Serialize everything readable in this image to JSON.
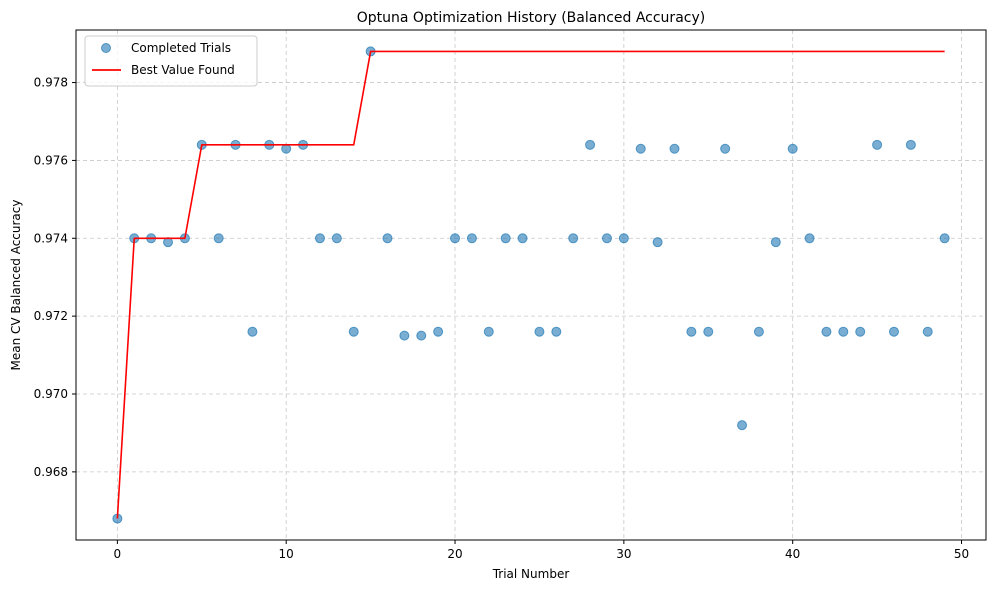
{
  "chart_data": {
    "type": "scatter",
    "title": "Optuna Optimization History (Balanced Accuracy)",
    "xlabel": "Trial Number",
    "ylabel": "Mean CV Balanced Accuracy",
    "xlim": [
      -2.45,
      51.45
    ],
    "ylim": [
      0.96625,
      0.97935
    ],
    "xticks": [
      0,
      10,
      20,
      30,
      40,
      50
    ],
    "yticks": [
      0.968,
      0.97,
      0.972,
      0.974,
      0.976,
      0.978
    ],
    "ytick_labels": [
      "0.968",
      "0.970",
      "0.972",
      "0.974",
      "0.976",
      "0.978"
    ],
    "grid": true,
    "legend_position": "upper-left",
    "series": [
      {
        "name": "Completed Trials",
        "kind": "scatter",
        "color": "#1f77b4",
        "x": [
          0,
          1,
          2,
          3,
          4,
          5,
          6,
          7,
          8,
          9,
          10,
          11,
          12,
          13,
          14,
          15,
          16,
          17,
          18,
          19,
          20,
          21,
          22,
          23,
          24,
          25,
          26,
          27,
          28,
          29,
          30,
          31,
          32,
          33,
          34,
          35,
          36,
          37,
          38,
          39,
          40,
          41,
          42,
          43,
          44,
          45,
          46,
          47,
          48,
          49
        ],
        "y": [
          0.9668,
          0.974,
          0.974,
          0.9739,
          0.974,
          0.9764,
          0.974,
          0.9764,
          0.9716,
          0.9764,
          0.9763,
          0.9764,
          0.974,
          0.974,
          0.9716,
          0.9788,
          0.974,
          0.9715,
          0.9715,
          0.9716,
          0.974,
          0.974,
          0.9716,
          0.974,
          0.974,
          0.9716,
          0.9716,
          0.974,
          0.9764,
          0.974,
          0.974,
          0.9763,
          0.9739,
          0.9763,
          0.9716,
          0.9716,
          0.9763,
          0.9692,
          0.9716,
          0.9739,
          0.9763,
          0.974,
          0.9716,
          0.9716,
          0.9716,
          0.9764,
          0.9716,
          0.9764,
          0.9716,
          0.974
        ]
      },
      {
        "name": "Best Value Found",
        "kind": "line",
        "color": "#ff0000",
        "x": [
          0,
          1,
          2,
          3,
          4,
          5,
          6,
          7,
          8,
          9,
          10,
          11,
          12,
          13,
          14,
          15,
          16,
          17,
          18,
          19,
          20,
          21,
          22,
          23,
          24,
          25,
          26,
          27,
          28,
          29,
          30,
          31,
          32,
          33,
          34,
          35,
          36,
          37,
          38,
          39,
          40,
          41,
          42,
          43,
          44,
          45,
          46,
          47,
          48,
          49
        ],
        "y": [
          0.9668,
          0.974,
          0.974,
          0.974,
          0.974,
          0.9764,
          0.9764,
          0.9764,
          0.9764,
          0.9764,
          0.9764,
          0.9764,
          0.9764,
          0.9764,
          0.9764,
          0.9788,
          0.9788,
          0.9788,
          0.9788,
          0.9788,
          0.9788,
          0.9788,
          0.9788,
          0.9788,
          0.9788,
          0.9788,
          0.9788,
          0.9788,
          0.9788,
          0.9788,
          0.9788,
          0.9788,
          0.9788,
          0.9788,
          0.9788,
          0.9788,
          0.9788,
          0.9788,
          0.9788,
          0.9788,
          0.9788,
          0.9788,
          0.9788,
          0.9788,
          0.9788,
          0.9788,
          0.9788,
          0.9788,
          0.9788,
          0.9788
        ]
      }
    ]
  }
}
